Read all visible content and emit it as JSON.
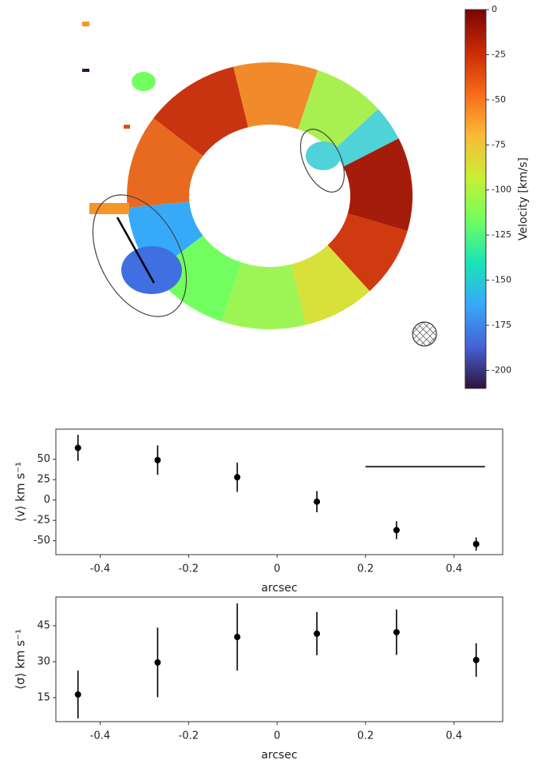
{
  "chart_data": [
    {
      "type": "image",
      "zlabel": "Velocity [km/s]",
      "zlim": [
        -210,
        0
      ],
      "zticks": [
        0,
        -25,
        -50,
        -75,
        -100,
        -125,
        -150,
        -175,
        -200
      ],
      "colormap": [
        "#7a0403",
        "#ca2a04",
        "#f66b19",
        "#faba39",
        "#c8ef34",
        "#72fe5e",
        "#1ae4b6",
        "#36aaf9",
        "#4662d7",
        "#30123b"
      ]
    },
    {
      "type": "errorbar",
      "ylabel": "⟨v⟩ km s⁻¹",
      "xlabel": "arcsec",
      "x": [
        -0.45,
        -0.27,
        -0.09,
        0.09,
        0.27,
        0.45
      ],
      "values": [
        64,
        49,
        28,
        -2,
        -37,
        -54
      ],
      "errors": [
        16,
        18,
        18,
        13,
        11,
        8
      ],
      "color": "#000000",
      "xlim": [
        -0.5,
        0.51
      ],
      "xticks": [
        -0.4,
        -0.2,
        0,
        0.2,
        0.4
      ],
      "ylim": [
        -67,
        87
      ],
      "yticks": [
        -50,
        -25,
        0,
        25,
        50
      ],
      "hline": {
        "y": 41,
        "xmin": 0.2,
        "xmax": 0.47
      }
    },
    {
      "type": "errorbar",
      "ylabel": "⟨σ⟩ km s⁻¹",
      "xlabel": "arcsec",
      "x": [
        -0.45,
        -0.27,
        -0.09,
        0.09,
        0.27,
        0.45
      ],
      "values": [
        16.3,
        29.7,
        40.3,
        41.7,
        42.3,
        30.7
      ],
      "errors": [
        10,
        14.5,
        14,
        9,
        9.5,
        7
      ],
      "color": "#000000",
      "xlim": [
        -0.5,
        0.51
      ],
      "xticks": [
        -0.4,
        -0.2,
        0,
        0.2,
        0.4
      ],
      "ylim": [
        5,
        57
      ],
      "yticks": [
        15,
        30,
        45
      ]
    }
  ]
}
